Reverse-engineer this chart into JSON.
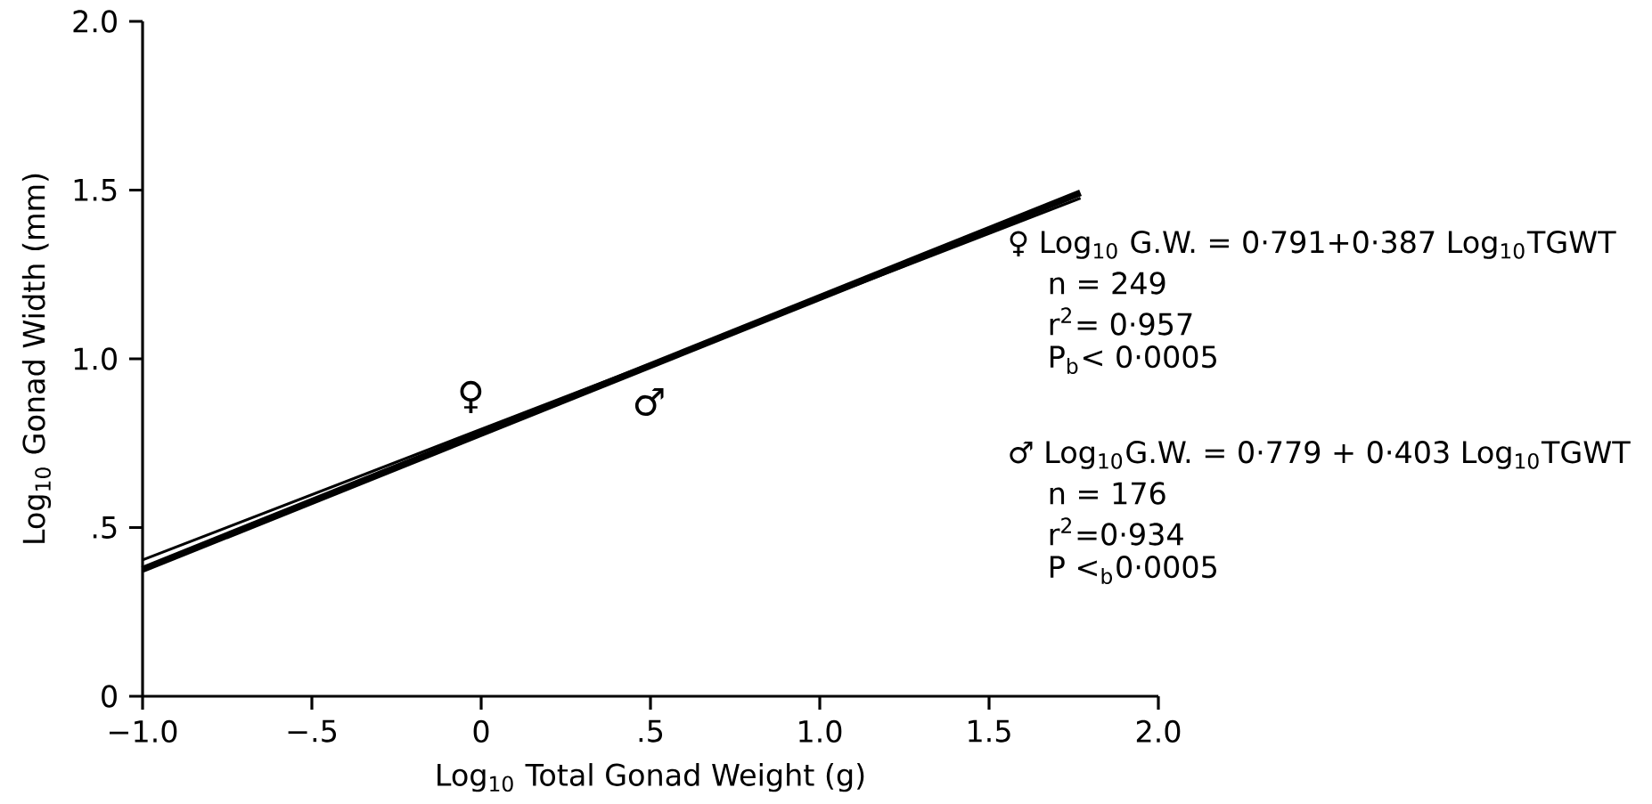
{
  "chart_data": {
    "type": "line",
    "xlabel": "Log$_{10}$ Total Gonad Weight (g)",
    "ylabel": "Log$_{10}$ Gonad Width (mm)",
    "x": [
      -1.0,
      1.77
    ],
    "series": [
      {
        "name": "♀",
        "color": "#000000",
        "values": [
          0.404,
          1.476
        ]
      },
      {
        "name": "♂",
        "color": "#000000",
        "values": [
          0.376,
          1.492
        ]
      }
    ],
    "xlim": [
      -1.0,
      2.0
    ],
    "ylim": [
      0,
      2.0
    ],
    "xticks": [
      {
        "value": -1.0,
        "label": "−1.0"
      },
      {
        "value": -0.5,
        "label": "−.5"
      },
      0,
      {
        "value": 0.5,
        "label": ".5"
      },
      {
        "value": 1.0,
        "label": "1.0"
      },
      {
        "value": 1.5,
        "label": "1.5"
      },
      {
        "value": 2.0,
        "label": "2.0"
      }
    ],
    "yticks": [
      0,
      {
        "value": 0.5,
        "label": ".5"
      },
      {
        "value": 1.0,
        "label": "1.0"
      },
      {
        "value": 1.5,
        "label": "1.5"
      },
      {
        "value": 2.0,
        "label": "2.0"
      }
    ],
    "grid": false,
    "legend": false,
    "annotations": [
      "♀ Log$_{10}$ G.W. = 0·791+0·387 Log$_{10}$TGWT",
      "n = 249",
      "r$^{2}$= 0·957",
      "P$_{b}$< 0·0005",
      "♂ Log$_{10}$G.W. = 0·779 + 0·403 Log$_{10}$TGWT",
      "n = 176",
      "r$^{2}$=0·934",
      "P <$_{b}$0·0005"
    ]
  }
}
